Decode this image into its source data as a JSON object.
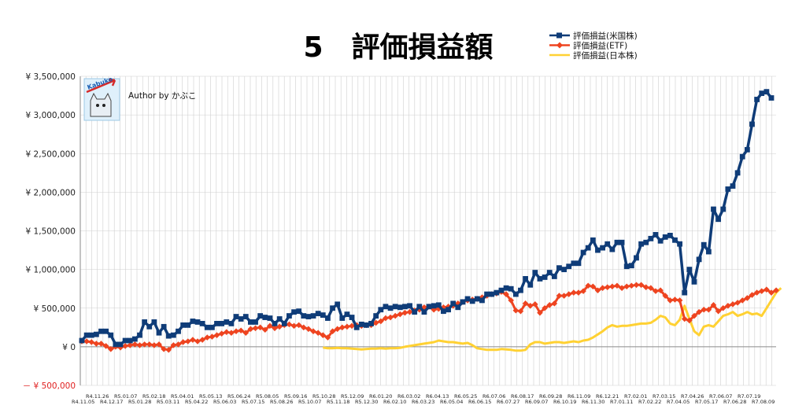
{
  "chart_data": {
    "type": "line",
    "title": "5　評価損益額",
    "annotation": "Author by かぶこ",
    "logo_text": "Kabuko",
    "ylim": [
      -500000,
      3500000
    ],
    "y_ticks": [
      {
        "value": 3500000,
        "label": "¥ 3,500,000"
      },
      {
        "value": 3000000,
        "label": "¥ 3,000,000"
      },
      {
        "value": 2500000,
        "label": "¥ 2,500,000"
      },
      {
        "value": 2000000,
        "label": "¥ 2,000,000"
      },
      {
        "value": 1500000,
        "label": "¥ 1,500,000"
      },
      {
        "value": 1000000,
        "label": "¥ 1,000,000"
      },
      {
        "value": 500000,
        "label": "¥ 500,000"
      },
      {
        "value": 0,
        "label": "¥ 0"
      },
      {
        "value": -500000,
        "label": "－ ¥ 500,000"
      }
    ],
    "x_ticks_upper": [
      "R4.11.26",
      "R5.01.07",
      "R5.02.18",
      "R5.04.01",
      "R5.05.13",
      "R5.06.24",
      "R5.08.05",
      "R5.09.16",
      "R5.10.28",
      "R5.12.09",
      "R6.01.20",
      "R6.03.02",
      "R6.04.13",
      "R6.05.25",
      "R6.07.06",
      "R6.08.17",
      "R6.09.28",
      "R6.11.09",
      "R6.12.21",
      "R7.02.01",
      "R7.03.15",
      "R7.04.26",
      "R7.06.07",
      "R7.07.19"
    ],
    "x_ticks_lower": [
      "R4.11.05",
      "R4.12.17",
      "R5.01.28",
      "R5.03.11",
      "R5.04.22",
      "R5.06.03",
      "R5.07.15",
      "R5.08.26",
      "R5.10.07",
      "R5.11.18",
      "R5.12.30",
      "R6.02.10",
      "R6.03.23",
      "R6.05.04",
      "R6.06.15",
      "R6.07.27",
      "R6.09.07",
      "R6.10.19",
      "R6.11.30",
      "R7.01.11",
      "R7.02.22",
      "R7.04.05",
      "R7.05.17",
      "R7.06.28",
      "R7.08.09"
    ],
    "grid": true,
    "legend_position": "top-right",
    "series": [
      {
        "name": "評価損益(米国株)",
        "color": "#0f3c78",
        "marker": "square",
        "values": [
          80000,
          150000,
          150000,
          160000,
          200000,
          200000,
          150000,
          30000,
          30000,
          80000,
          80000,
          100000,
          150000,
          320000,
          260000,
          320000,
          180000,
          260000,
          140000,
          150000,
          200000,
          280000,
          280000,
          330000,
          320000,
          300000,
          250000,
          250000,
          300000,
          300000,
          320000,
          300000,
          390000,
          360000,
          390000,
          320000,
          320000,
          400000,
          380000,
          370000,
          300000,
          360000,
          300000,
          400000,
          450000,
          460000,
          400000,
          390000,
          400000,
          430000,
          410000,
          370000,
          500000,
          550000,
          370000,
          420000,
          380000,
          250000,
          290000,
          280000,
          300000,
          400000,
          480000,
          520000,
          500000,
          520000,
          510000,
          520000,
          530000,
          450000,
          520000,
          450000,
          520000,
          530000,
          540000,
          460000,
          480000,
          560000,
          510000,
          580000,
          620000,
          590000,
          620000,
          600000,
          680000,
          680000,
          700000,
          730000,
          760000,
          750000,
          680000,
          730000,
          880000,
          800000,
          960000,
          880000,
          900000,
          960000,
          910000,
          1020000,
          1000000,
          1040000,
          1080000,
          1080000,
          1220000,
          1280000,
          1380000,
          1250000,
          1280000,
          1330000,
          1260000,
          1350000,
          1350000,
          1040000,
          1050000,
          1150000,
          1330000,
          1350000,
          1400000,
          1450000,
          1370000,
          1420000,
          1440000,
          1380000,
          1330000,
          700000,
          1000000,
          840000,
          1130000,
          1320000,
          1230000,
          1780000,
          1650000,
          1780000,
          2040000,
          2080000,
          2250000,
          2460000,
          2550000,
          2880000,
          3200000,
          3280000,
          3300000,
          3220000
        ]
      },
      {
        "name": "評価損益(ETF)",
        "color": "#ee4420",
        "marker": "diamond",
        "values": [
          70000,
          70000,
          60000,
          40000,
          40000,
          10000,
          -30000,
          0,
          -10000,
          10000,
          20000,
          30000,
          20000,
          30000,
          30000,
          20000,
          30000,
          -30000,
          -40000,
          20000,
          30000,
          60000,
          70000,
          90000,
          70000,
          90000,
          120000,
          130000,
          150000,
          170000,
          190000,
          180000,
          200000,
          210000,
          180000,
          230000,
          240000,
          250000,
          220000,
          270000,
          240000,
          260000,
          280000,
          290000,
          270000,
          280000,
          250000,
          230000,
          200000,
          180000,
          150000,
          120000,
          200000,
          230000,
          250000,
          260000,
          270000,
          280000,
          270000,
          280000,
          280000,
          310000,
          330000,
          370000,
          380000,
          400000,
          420000,
          440000,
          450000,
          470000,
          480000,
          510000,
          520000,
          480000,
          490000,
          510000,
          520000,
          530000,
          560000,
          580000,
          600000,
          610000,
          620000,
          640000,
          660000,
          680000,
          690000,
          710000,
          680000,
          600000,
          470000,
          460000,
          560000,
          530000,
          550000,
          440000,
          500000,
          540000,
          560000,
          660000,
          660000,
          680000,
          700000,
          700000,
          720000,
          790000,
          780000,
          730000,
          760000,
          770000,
          780000,
          790000,
          760000,
          780000,
          790000,
          800000,
          800000,
          770000,
          760000,
          720000,
          730000,
          660000,
          600000,
          610000,
          600000,
          360000,
          340000,
          400000,
          450000,
          480000,
          480000,
          540000,
          460000,
          500000,
          530000,
          550000,
          570000,
          600000,
          630000,
          670000,
          700000,
          720000,
          740000,
          700000,
          730000
        ]
      },
      {
        "name": "評価損益(日本株)",
        "color": "#ffd133",
        "marker": "none",
        "values": [
          null,
          null,
          null,
          null,
          null,
          null,
          null,
          null,
          null,
          null,
          null,
          null,
          null,
          null,
          null,
          null,
          null,
          null,
          null,
          null,
          null,
          null,
          null,
          null,
          null,
          null,
          null,
          null,
          null,
          null,
          null,
          null,
          null,
          null,
          null,
          null,
          null,
          null,
          null,
          null,
          null,
          null,
          null,
          null,
          null,
          null,
          null,
          null,
          null,
          null,
          -10000,
          -20000,
          -20000,
          -15000,
          -20000,
          -20000,
          -25000,
          -30000,
          -35000,
          -30000,
          -25000,
          -25000,
          -20000,
          -25000,
          -20000,
          -20000,
          -15000,
          0,
          10000,
          20000,
          30000,
          40000,
          50000,
          60000,
          80000,
          70000,
          60000,
          60000,
          50000,
          40000,
          50000,
          20000,
          -20000,
          -30000,
          -40000,
          -40000,
          -40000,
          -30000,
          -35000,
          -40000,
          -50000,
          -50000,
          -40000,
          30000,
          60000,
          60000,
          40000,
          50000,
          60000,
          60000,
          50000,
          60000,
          70000,
          60000,
          80000,
          90000,
          120000,
          160000,
          200000,
          250000,
          280000,
          260000,
          270000,
          270000,
          280000,
          290000,
          300000,
          300000,
          310000,
          350000,
          400000,
          380000,
          300000,
          280000,
          350000,
          530000,
          360000,
          200000,
          150000,
          260000,
          280000,
          260000,
          330000,
          400000,
          420000,
          450000,
          400000,
          420000,
          450000,
          420000,
          430000,
          400000,
          500000,
          600000,
          700000,
          760000
        ]
      }
    ]
  }
}
